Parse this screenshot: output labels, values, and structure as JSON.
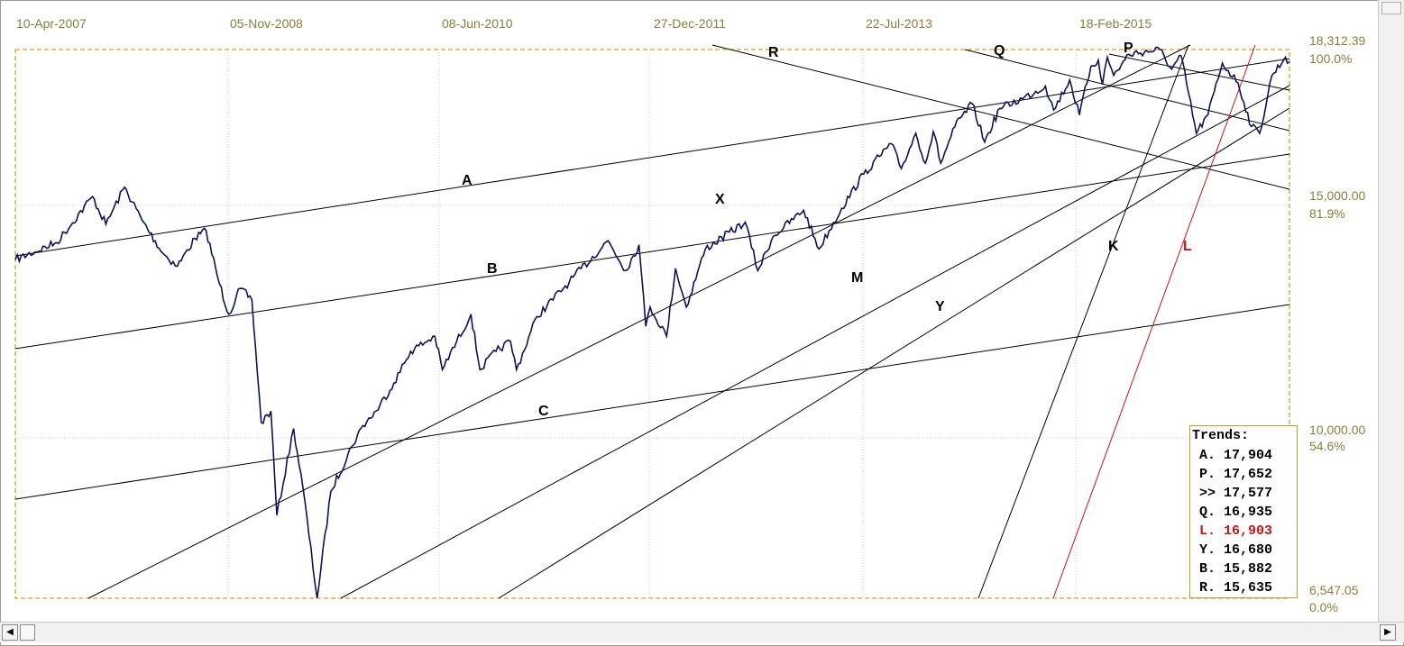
{
  "colors": {
    "price": "#0d1257",
    "trendline": "#000000",
    "highlight": "#cc1111",
    "axis_text": "#8b7d3a",
    "frame": "#d4a020",
    "grid": "#c8c8c8"
  },
  "chart_data": {
    "type": "line",
    "x_tick_labels": [
      "10-Apr-2007",
      "05-Nov-2008",
      "08-Jun-2010",
      "27-Dec-2011",
      "22-Jul-2013",
      "18-Feb-2015"
    ],
    "y_axis": {
      "scale": "log",
      "ylim": [
        6547.05,
        18312.39
      ],
      "ticks": [
        {
          "value": "18,312.39",
          "pct": "100.0%"
        },
        {
          "value": "15,000.00",
          "pct": "81.9%"
        },
        {
          "value": "10,000.00",
          "pct": "54.6%"
        },
        {
          "value": "6,547.05",
          "pct": "0.0%"
        }
      ]
    },
    "grid": true,
    "series": [
      {
        "x": [
          "2006-12-20",
          "2007-04-10",
          "2007-07-15",
          "2007-08-20",
          "2007-10-09",
          "2007-11-25",
          "2008-01-20",
          "2008-02-28",
          "2008-04-15",
          "2008-05-15",
          "2008-06-20",
          "2008-07-15",
          "2008-08-15",
          "2008-09-15",
          "2008-10-10",
          "2008-11-05",
          "2008-11-21",
          "2009-01-05",
          "2009-01-30",
          "2009-03-09",
          "2009-04-15",
          "2009-06-10",
          "2009-07-10",
          "2009-08-15",
          "2009-10-01",
          "2009-11-15",
          "2010-01-19",
          "2010-02-08",
          "2010-04-26",
          "2010-05-20",
          "2010-07-02",
          "2010-08-10",
          "2010-08-26",
          "2010-10-20",
          "2011-01-15",
          "2011-04-29",
          "2011-06-15",
          "2011-07-21",
          "2011-08-08",
          "2011-08-20",
          "2011-10-03",
          "2011-10-27",
          "2011-11-25",
          "2012-01-15",
          "2012-05-01",
          "2012-06-04",
          "2012-07-15",
          "2012-10-05",
          "2012-11-15",
          "2013-01-15",
          "2013-03-15",
          "2013-05-28",
          "2013-06-24",
          "2013-08-02",
          "2013-08-28",
          "2013-09-18",
          "2013-10-08",
          "2013-11-15",
          "2013-12-31",
          "2014-02-03",
          "2014-03-15",
          "2014-05-15",
          "2014-07-16",
          "2014-08-07",
          "2014-09-19",
          "2014-10-15",
          "2014-11-15",
          "2014-12-05",
          "2014-12-16",
          "2014-12-29",
          "2015-01-15",
          "2015-02-25",
          "2015-05-19",
          "2015-06-20",
          "2015-07-15",
          "2015-08-25",
          "2015-09-25",
          "2015-11-03",
          "2015-12-15",
          "2016-01-20",
          "2016-02-11",
          "2016-03-15",
          "2016-04-20",
          "2016-05-01"
        ],
        "y": [
          12350,
          12750,
          13900,
          13200,
          14150,
          13300,
          12500,
          12200,
          12850,
          13050,
          11800,
          11150,
          11700,
          11450,
          9100,
          9300,
          7650,
          9000,
          8050,
          6547,
          8000,
          8700,
          9050,
          9300,
          9800,
          10400,
          10700,
          10050,
          11150,
          10050,
          10400,
          10600,
          10050,
          11100,
          11850,
          12800,
          12100,
          12700,
          10900,
          11300,
          10700,
          12150,
          11300,
          12600,
          13250,
          12100,
          12900,
          13550,
          12600,
          13600,
          14500,
          15350,
          14650,
          15650,
          14800,
          15700,
          14800,
          15850,
          16550,
          15400,
          16400,
          16700,
          17100,
          16350,
          17300,
          16200,
          17750,
          17950,
          17150,
          18050,
          17450,
          18150,
          18312,
          17650,
          18100,
          15650,
          16200,
          17850,
          17200,
          15850,
          15650,
          17450,
          18050,
          17900
        ]
      }
    ],
    "trendline_labels": [
      "A",
      "B",
      "C",
      "X",
      "M",
      "Y",
      "R",
      "Q",
      "P",
      "K",
      "L"
    ],
    "trends_box": {
      "title": "Trends:",
      "rows": [
        {
          "label": "A.",
          "value": "17,904"
        },
        {
          "label": "P.",
          "value": "17,652"
        },
        {
          "label": ">>",
          "value": "17,577"
        },
        {
          "label": "Q.",
          "value": "16,935"
        },
        {
          "label": "L.",
          "value": "16,903",
          "highlight": true
        },
        {
          "label": "Y.",
          "value": "16,680"
        },
        {
          "label": "B.",
          "value": "15,882"
        },
        {
          "label": "R.",
          "value": "15,635"
        }
      ]
    }
  }
}
